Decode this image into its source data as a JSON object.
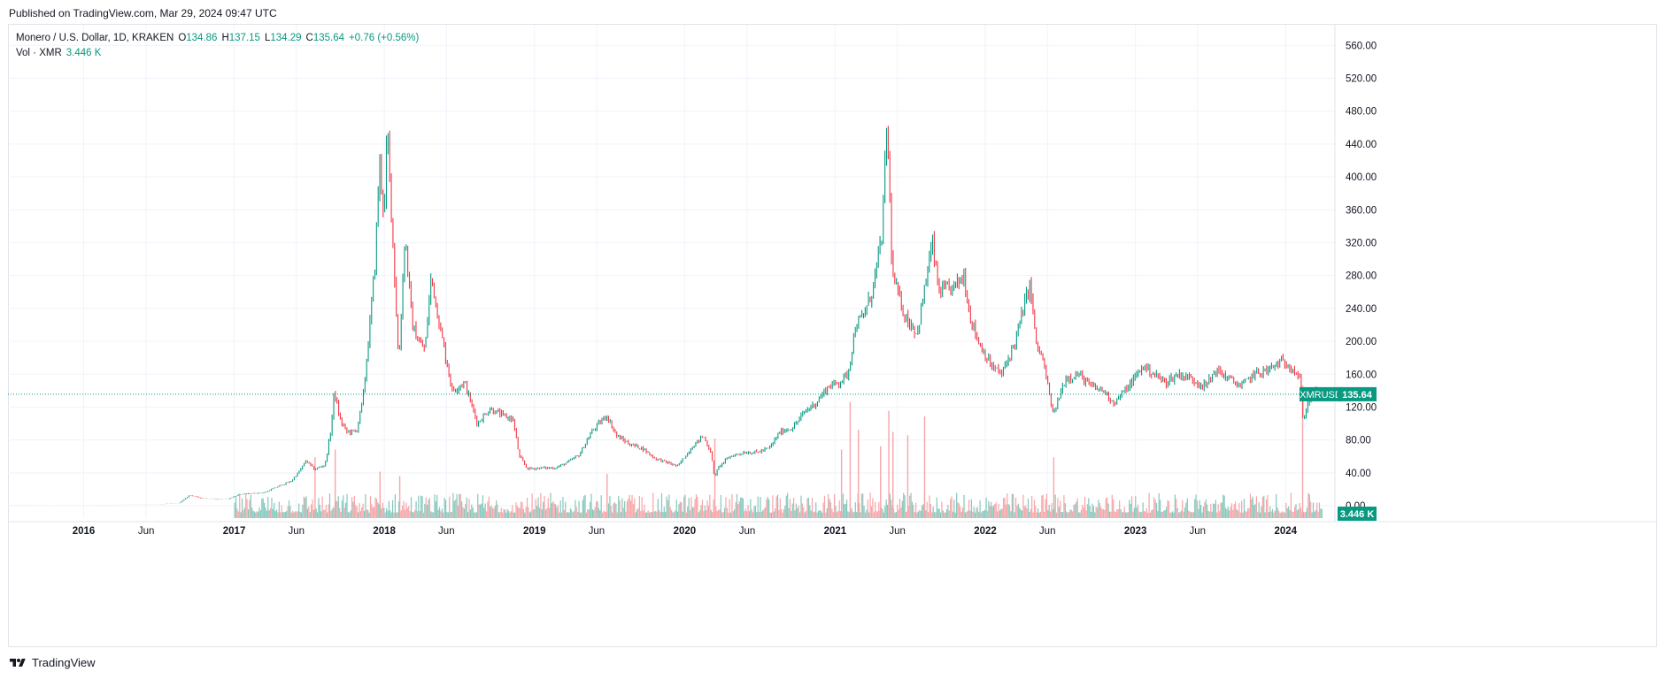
{
  "published": "Published on TradingView.com, Mar 29, 2024 09:47 UTC",
  "legend": {
    "symbol": "Monero / U.S. Dollar, 1D, KRAKEN",
    "open_label": "O",
    "open": "134.86",
    "high_label": "H",
    "high": "137.15",
    "low_label": "L",
    "low": "134.29",
    "close_label": "C",
    "close": "135.64",
    "change": "+0.76 (+0.56%)",
    "vol_label": "Vol · XMR",
    "vol_value": "3.446 K"
  },
  "brand": "TradingView",
  "colors": {
    "up": "#089981",
    "down": "#f23645",
    "up_vol": "#85c8bc",
    "down_vol": "#f7a5a8",
    "grid": "#f0f3fa",
    "price_label_bg": "#089981"
  },
  "chart_data": {
    "type": "line",
    "title": "Monero / U.S. Dollar, 1D, KRAKEN",
    "y_axis": {
      "ylim": [
        -15,
        585
      ],
      "ticks": [
        "560.00",
        "520.00",
        "480.00",
        "440.00",
        "400.00",
        "360.00",
        "320.00",
        "280.00",
        "240.00",
        "200.00",
        "160.00",
        "120.00",
        "80.00",
        "40.00",
        "0.00"
      ],
      "tick_values": [
        560,
        520,
        480,
        440,
        400,
        360,
        320,
        280,
        240,
        200,
        160,
        120,
        80,
        40,
        0
      ]
    },
    "x_axis": {
      "range": [
        "2015-07-01",
        "2024-04-30"
      ],
      "tick_labels": [
        "2016",
        "Jun",
        "2017",
        "Jun",
        "2018",
        "Jun",
        "2019",
        "Jun",
        "2020",
        "Jun",
        "2021",
        "Jun",
        "2022",
        "Jun",
        "2023",
        "Jun",
        "2024"
      ],
      "tick_dates": [
        "2016-01-01",
        "2016-06-01",
        "2017-01-01",
        "2017-06-01",
        "2018-01-01",
        "2018-06-01",
        "2019-01-01",
        "2019-06-01",
        "2020-01-01",
        "2020-06-01",
        "2021-01-01",
        "2021-06-01",
        "2022-01-01",
        "2022-06-01",
        "2023-01-01",
        "2023-06-01",
        "2024-01-01"
      ],
      "bold_labels": [
        "2016",
        "2017",
        "2018",
        "2019",
        "2020",
        "2021",
        "2022",
        "2023",
        "2024"
      ]
    },
    "series": [
      {
        "name": "XMRUSD",
        "points": [
          [
            "2015-07-01",
            1.0
          ],
          [
            "2015-10-01",
            0.5
          ],
          [
            "2016-01-01",
            0.5
          ],
          [
            "2016-04-01",
            1.2
          ],
          [
            "2016-07-01",
            1.8
          ],
          [
            "2016-08-20",
            3.2
          ],
          [
            "2016-09-15",
            13
          ],
          [
            "2016-10-15",
            9
          ],
          [
            "2016-12-15",
            8
          ],
          [
            "2017-01-15",
            14
          ],
          [
            "2017-03-15",
            16
          ],
          [
            "2017-04-15",
            23
          ],
          [
            "2017-05-20",
            30
          ],
          [
            "2017-06-10",
            43
          ],
          [
            "2017-06-25",
            55
          ],
          [
            "2017-07-15",
            44
          ],
          [
            "2017-08-10",
            50
          ],
          [
            "2017-08-25",
            95
          ],
          [
            "2017-09-01",
            140
          ],
          [
            "2017-09-15",
            105
          ],
          [
            "2017-10-01",
            90
          ],
          [
            "2017-10-25",
            90
          ],
          [
            "2017-11-10",
            130
          ],
          [
            "2017-11-25",
            210
          ],
          [
            "2017-12-10",
            300
          ],
          [
            "2017-12-20",
            420
          ],
          [
            "2018-01-01",
            350
          ],
          [
            "2018-01-08",
            460
          ],
          [
            "2018-01-20",
            340
          ],
          [
            "2018-02-05",
            170
          ],
          [
            "2018-02-20",
            330
          ],
          [
            "2018-03-10",
            220
          ],
          [
            "2018-03-25",
            200
          ],
          [
            "2018-04-10",
            190
          ],
          [
            "2018-04-25",
            280
          ],
          [
            "2018-05-15",
            220
          ],
          [
            "2018-06-15",
            140
          ],
          [
            "2018-07-15",
            150
          ],
          [
            "2018-08-15",
            100
          ],
          [
            "2018-09-15",
            118
          ],
          [
            "2018-10-15",
            110
          ],
          [
            "2018-11-10",
            105
          ],
          [
            "2018-11-25",
            60
          ],
          [
            "2018-12-15",
            45
          ],
          [
            "2019-01-15",
            46
          ],
          [
            "2019-02-20",
            46
          ],
          [
            "2019-03-20",
            52
          ],
          [
            "2019-04-20",
            62
          ],
          [
            "2019-05-20",
            90
          ],
          [
            "2019-06-25",
            110
          ],
          [
            "2019-07-20",
            85
          ],
          [
            "2019-08-20",
            75
          ],
          [
            "2019-09-20",
            70
          ],
          [
            "2019-10-20",
            58
          ],
          [
            "2019-12-15",
            48
          ],
          [
            "2020-01-20",
            72
          ],
          [
            "2020-02-15",
            85
          ],
          [
            "2020-03-05",
            65
          ],
          [
            "2020-03-13",
            35
          ],
          [
            "2020-03-25",
            48
          ],
          [
            "2020-04-20",
            60
          ],
          [
            "2020-05-25",
            65
          ],
          [
            "2020-06-25",
            65
          ],
          [
            "2020-07-25",
            70
          ],
          [
            "2020-08-20",
            90
          ],
          [
            "2020-09-20",
            95
          ],
          [
            "2020-10-20",
            115
          ],
          [
            "2020-11-15",
            125
          ],
          [
            "2020-12-15",
            145
          ],
          [
            "2021-01-10",
            150
          ],
          [
            "2021-02-01",
            160
          ],
          [
            "2021-02-20",
            220
          ],
          [
            "2021-03-10",
            230
          ],
          [
            "2021-04-01",
            260
          ],
          [
            "2021-04-15",
            300
          ],
          [
            "2021-04-25",
            330
          ],
          [
            "2021-05-07",
            470
          ],
          [
            "2021-05-20",
            280
          ],
          [
            "2021-06-20",
            230
          ],
          [
            "2021-07-20",
            210
          ],
          [
            "2021-08-10",
            275
          ],
          [
            "2021-08-25",
            320
          ],
          [
            "2021-09-10",
            260
          ],
          [
            "2021-10-15",
            265
          ],
          [
            "2021-11-10",
            280
          ],
          [
            "2021-11-25",
            230
          ],
          [
            "2021-12-15",
            200
          ],
          [
            "2022-01-15",
            170
          ],
          [
            "2022-02-10",
            160
          ],
          [
            "2022-03-15",
            200
          ],
          [
            "2022-04-01",
            235
          ],
          [
            "2022-04-20",
            270
          ],
          [
            "2022-05-05",
            195
          ],
          [
            "2022-05-20",
            180
          ],
          [
            "2022-06-15",
            110
          ],
          [
            "2022-07-15",
            155
          ],
          [
            "2022-08-15",
            160
          ],
          [
            "2022-09-15",
            145
          ],
          [
            "2022-10-15",
            140
          ],
          [
            "2022-11-10",
            125
          ],
          [
            "2022-12-15",
            145
          ],
          [
            "2023-01-20",
            170
          ],
          [
            "2023-02-15",
            160
          ],
          [
            "2023-03-15",
            150
          ],
          [
            "2023-04-15",
            160
          ],
          [
            "2023-05-15",
            155
          ],
          [
            "2023-06-20",
            145
          ],
          [
            "2023-07-15",
            165
          ],
          [
            "2023-08-15",
            155
          ],
          [
            "2023-09-15",
            145
          ],
          [
            "2023-10-15",
            160
          ],
          [
            "2023-11-20",
            165
          ],
          [
            "2023-12-20",
            175
          ],
          [
            "2024-01-15",
            170
          ],
          [
            "2024-02-05",
            155
          ],
          [
            "2024-02-12",
            105
          ],
          [
            "2024-02-25",
            125
          ],
          [
            "2024-03-10",
            140
          ],
          [
            "2024-03-29",
            135.64
          ]
        ]
      }
    ],
    "volume": {
      "name": "Vol · XMR",
      "start_date": "2017-01-01",
      "spikes": [
        [
          "2017-07-15",
          0.55
        ],
        [
          "2017-09-02",
          0.62
        ],
        [
          "2017-12-20",
          0.42
        ],
        [
          "2018-02-06",
          0.38
        ],
        [
          "2019-06-25",
          0.4
        ],
        [
          "2020-03-13",
          0.72
        ],
        [
          "2021-01-15",
          0.62
        ],
        [
          "2021-02-05",
          1.05
        ],
        [
          "2021-02-25",
          0.8
        ],
        [
          "2021-04-20",
          0.65
        ],
        [
          "2021-05-10",
          0.97
        ],
        [
          "2021-05-20",
          0.78
        ],
        [
          "2021-06-25",
          0.75
        ],
        [
          "2021-08-05",
          0.92
        ],
        [
          "2022-06-15",
          0.55
        ],
        [
          "2024-02-10",
          1.2
        ]
      ]
    },
    "price_line": {
      "label": "XMRUSD",
      "value": "135.64"
    },
    "volume_label": "3.446 K",
    "grid": true
  }
}
